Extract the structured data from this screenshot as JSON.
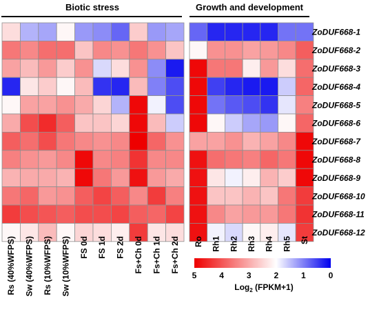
{
  "chart_data": [
    {
      "type": "heatmap",
      "group_label": "Biotic stress",
      "columns": [
        "Rs (40%WFPS)",
        "Sw (40%WFPS)",
        "Rs (10%WFPS)",
        "Sw (10%WFPS)",
        "FS 0d",
        "FS 1d",
        "FS 2d",
        "Fs+Ch 0d",
        "Fs+Ch 1d",
        "Fs+Ch 2d"
      ],
      "rows": [
        "ZoDUF668-1",
        "ZoDUF668-2",
        "ZoDUF668-3",
        "ZoDUF668-4",
        "ZoDUF668-5",
        "ZoDUF668-6",
        "ZoDUF668-7",
        "ZoDUF668-8",
        "ZoDUF668-9",
        "ZoDUF668-10",
        "ZoDUF668-11",
        "ZoDUF668-12"
      ],
      "values": [
        [
          2.4,
          1.4,
          1.3,
          2.1,
          1.2,
          1.1,
          0.8,
          2.6,
          1.2,
          1.3
        ],
        [
          3.6,
          3.4,
          3.7,
          3.7,
          2.7,
          3.4,
          3.3,
          3.6,
          3.3,
          2.7
        ],
        [
          3.1,
          2.8,
          3.2,
          2.6,
          3.3,
          1.7,
          2.4,
          3.3,
          1.1,
          0.2
        ],
        [
          0.3,
          2.3,
          2.6,
          2.1,
          2.8,
          0.4,
          0.3,
          2.8,
          1.0,
          0.6
        ],
        [
          2.1,
          3.1,
          3.1,
          3.3,
          3.0,
          2.5,
          1.4,
          4.9,
          1.9,
          0.6
        ],
        [
          3.0,
          4.1,
          4.5,
          3.9,
          2.7,
          2.7,
          2.5,
          4.9,
          2.8,
          1.6
        ],
        [
          3.9,
          3.7,
          4.1,
          3.6,
          3.4,
          3.3,
          3.4,
          5.0,
          3.8,
          3.3
        ],
        [
          3.5,
          3.3,
          3.2,
          3.4,
          4.9,
          3.4,
          3.5,
          4.4,
          3.4,
          3.4
        ],
        [
          2.9,
          3.0,
          3.0,
          2.9,
          4.9,
          3.6,
          3.2,
          4.8,
          3.2,
          3.0
        ],
        [
          3.6,
          3.8,
          3.2,
          3.3,
          3.9,
          4.2,
          3.9,
          3.4,
          4.3,
          3.5
        ],
        [
          4.3,
          4.1,
          4.0,
          3.9,
          4.1,
          4.1,
          4.2,
          3.9,
          3.8,
          4.2
        ],
        [
          2.1,
          2.3,
          2.8,
          2.1,
          2.5,
          2.4,
          2.2,
          4.3,
          2.3,
          2.4
        ]
      ]
    },
    {
      "type": "heatmap",
      "group_label": "Growth and development",
      "columns": [
        "Ro",
        "Rh1",
        "Rh2",
        "Rh3",
        "Rh4",
        "Rh5",
        "St"
      ],
      "rows": [
        "ZoDUF668-1",
        "ZoDUF668-2",
        "ZoDUF668-3",
        "ZoDUF668-4",
        "ZoDUF668-5",
        "ZoDUF668-6",
        "ZoDUF668-7",
        "ZoDUF668-8",
        "ZoDUF668-9",
        "ZoDUF668-10",
        "ZoDUF668-11",
        "ZoDUF668-12"
      ],
      "values": [
        [
          0.8,
          0.3,
          0.3,
          0.3,
          0.3,
          0.9,
          0.9
        ],
        [
          2.1,
          3.3,
          3.3,
          3.1,
          3.2,
          3.4,
          3.9
        ],
        [
          4.9,
          3.6,
          3.6,
          2.2,
          3.2,
          2.4,
          3.7
        ],
        [
          4.9,
          0.5,
          0.3,
          0.2,
          0.2,
          1.6,
          3.8
        ],
        [
          4.9,
          0.9,
          0.7,
          0.6,
          0.4,
          1.8,
          3.5
        ],
        [
          4.9,
          2.1,
          1.6,
          1.3,
          1.2,
          2.1,
          3.8
        ],
        [
          3.1,
          3.1,
          3.3,
          2.9,
          3.1,
          3.4,
          4.9
        ],
        [
          4.8,
          3.7,
          3.6,
          3.5,
          3.8,
          3.6,
          4.9
        ],
        [
          4.8,
          2.3,
          1.9,
          2.2,
          2.9,
          2.6,
          4.9
        ],
        [
          4.8,
          2.7,
          2.7,
          2.9,
          2.7,
          3.6,
          4.3
        ],
        [
          4.8,
          3.4,
          3.1,
          3.2,
          3.2,
          3.6,
          4.4
        ],
        [
          4.8,
          1.9,
          1.7,
          2.1,
          2.2,
          1.8,
          4.3
        ]
      ]
    }
  ],
  "legend": {
    "min": 0,
    "max": 5,
    "tick_labels": [
      "5",
      "4",
      "3",
      "2",
      "1",
      "0"
    ],
    "tick_values": [
      5,
      4,
      3,
      2,
      1,
      0
    ],
    "title": "Log",
    "title_sub": "2",
    "title_rest": " (FPKM+1)"
  },
  "colors": {
    "high": "#ee0000",
    "mid": "#ffffff",
    "low": "#0000ee",
    "cell_border": "#8f8f8f"
  }
}
